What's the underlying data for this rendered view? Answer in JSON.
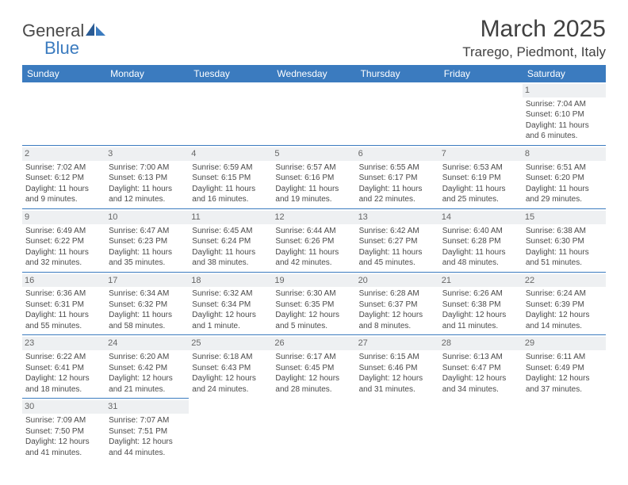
{
  "logo": {
    "general": "General",
    "blue": "Blue"
  },
  "title": "March 2025",
  "location": "Trarego, Piedmont, Italy",
  "colors": {
    "header_bg": "#3b7bbf",
    "header_text": "#ffffff",
    "border": "#3b7bbf",
    "daynum_bg": "#eef0f2",
    "body_text": "#4a4a4a"
  },
  "weekdays": [
    "Sunday",
    "Monday",
    "Tuesday",
    "Wednesday",
    "Thursday",
    "Friday",
    "Saturday"
  ],
  "weeks": [
    [
      null,
      null,
      null,
      null,
      null,
      null,
      {
        "n": "1",
        "sr": "Sunrise: 7:04 AM",
        "ss": "Sunset: 6:10 PM",
        "dl": "Daylight: 11 hours and 6 minutes."
      }
    ],
    [
      {
        "n": "2",
        "sr": "Sunrise: 7:02 AM",
        "ss": "Sunset: 6:12 PM",
        "dl": "Daylight: 11 hours and 9 minutes."
      },
      {
        "n": "3",
        "sr": "Sunrise: 7:00 AM",
        "ss": "Sunset: 6:13 PM",
        "dl": "Daylight: 11 hours and 12 minutes."
      },
      {
        "n": "4",
        "sr": "Sunrise: 6:59 AM",
        "ss": "Sunset: 6:15 PM",
        "dl": "Daylight: 11 hours and 16 minutes."
      },
      {
        "n": "5",
        "sr": "Sunrise: 6:57 AM",
        "ss": "Sunset: 6:16 PM",
        "dl": "Daylight: 11 hours and 19 minutes."
      },
      {
        "n": "6",
        "sr": "Sunrise: 6:55 AM",
        "ss": "Sunset: 6:17 PM",
        "dl": "Daylight: 11 hours and 22 minutes."
      },
      {
        "n": "7",
        "sr": "Sunrise: 6:53 AM",
        "ss": "Sunset: 6:19 PM",
        "dl": "Daylight: 11 hours and 25 minutes."
      },
      {
        "n": "8",
        "sr": "Sunrise: 6:51 AM",
        "ss": "Sunset: 6:20 PM",
        "dl": "Daylight: 11 hours and 29 minutes."
      }
    ],
    [
      {
        "n": "9",
        "sr": "Sunrise: 6:49 AM",
        "ss": "Sunset: 6:22 PM",
        "dl": "Daylight: 11 hours and 32 minutes."
      },
      {
        "n": "10",
        "sr": "Sunrise: 6:47 AM",
        "ss": "Sunset: 6:23 PM",
        "dl": "Daylight: 11 hours and 35 minutes."
      },
      {
        "n": "11",
        "sr": "Sunrise: 6:45 AM",
        "ss": "Sunset: 6:24 PM",
        "dl": "Daylight: 11 hours and 38 minutes."
      },
      {
        "n": "12",
        "sr": "Sunrise: 6:44 AM",
        "ss": "Sunset: 6:26 PM",
        "dl": "Daylight: 11 hours and 42 minutes."
      },
      {
        "n": "13",
        "sr": "Sunrise: 6:42 AM",
        "ss": "Sunset: 6:27 PM",
        "dl": "Daylight: 11 hours and 45 minutes."
      },
      {
        "n": "14",
        "sr": "Sunrise: 6:40 AM",
        "ss": "Sunset: 6:28 PM",
        "dl": "Daylight: 11 hours and 48 minutes."
      },
      {
        "n": "15",
        "sr": "Sunrise: 6:38 AM",
        "ss": "Sunset: 6:30 PM",
        "dl": "Daylight: 11 hours and 51 minutes."
      }
    ],
    [
      {
        "n": "16",
        "sr": "Sunrise: 6:36 AM",
        "ss": "Sunset: 6:31 PM",
        "dl": "Daylight: 11 hours and 55 minutes."
      },
      {
        "n": "17",
        "sr": "Sunrise: 6:34 AM",
        "ss": "Sunset: 6:32 PM",
        "dl": "Daylight: 11 hours and 58 minutes."
      },
      {
        "n": "18",
        "sr": "Sunrise: 6:32 AM",
        "ss": "Sunset: 6:34 PM",
        "dl": "Daylight: 12 hours and 1 minute."
      },
      {
        "n": "19",
        "sr": "Sunrise: 6:30 AM",
        "ss": "Sunset: 6:35 PM",
        "dl": "Daylight: 12 hours and 5 minutes."
      },
      {
        "n": "20",
        "sr": "Sunrise: 6:28 AM",
        "ss": "Sunset: 6:37 PM",
        "dl": "Daylight: 12 hours and 8 minutes."
      },
      {
        "n": "21",
        "sr": "Sunrise: 6:26 AM",
        "ss": "Sunset: 6:38 PM",
        "dl": "Daylight: 12 hours and 11 minutes."
      },
      {
        "n": "22",
        "sr": "Sunrise: 6:24 AM",
        "ss": "Sunset: 6:39 PM",
        "dl": "Daylight: 12 hours and 14 minutes."
      }
    ],
    [
      {
        "n": "23",
        "sr": "Sunrise: 6:22 AM",
        "ss": "Sunset: 6:41 PM",
        "dl": "Daylight: 12 hours and 18 minutes."
      },
      {
        "n": "24",
        "sr": "Sunrise: 6:20 AM",
        "ss": "Sunset: 6:42 PM",
        "dl": "Daylight: 12 hours and 21 minutes."
      },
      {
        "n": "25",
        "sr": "Sunrise: 6:18 AM",
        "ss": "Sunset: 6:43 PM",
        "dl": "Daylight: 12 hours and 24 minutes."
      },
      {
        "n": "26",
        "sr": "Sunrise: 6:17 AM",
        "ss": "Sunset: 6:45 PM",
        "dl": "Daylight: 12 hours and 28 minutes."
      },
      {
        "n": "27",
        "sr": "Sunrise: 6:15 AM",
        "ss": "Sunset: 6:46 PM",
        "dl": "Daylight: 12 hours and 31 minutes."
      },
      {
        "n": "28",
        "sr": "Sunrise: 6:13 AM",
        "ss": "Sunset: 6:47 PM",
        "dl": "Daylight: 12 hours and 34 minutes."
      },
      {
        "n": "29",
        "sr": "Sunrise: 6:11 AM",
        "ss": "Sunset: 6:49 PM",
        "dl": "Daylight: 12 hours and 37 minutes."
      }
    ],
    [
      {
        "n": "30",
        "sr": "Sunrise: 7:09 AM",
        "ss": "Sunset: 7:50 PM",
        "dl": "Daylight: 12 hours and 41 minutes."
      },
      {
        "n": "31",
        "sr": "Sunrise: 7:07 AM",
        "ss": "Sunset: 7:51 PM",
        "dl": "Daylight: 12 hours and 44 minutes."
      },
      null,
      null,
      null,
      null,
      null
    ]
  ]
}
